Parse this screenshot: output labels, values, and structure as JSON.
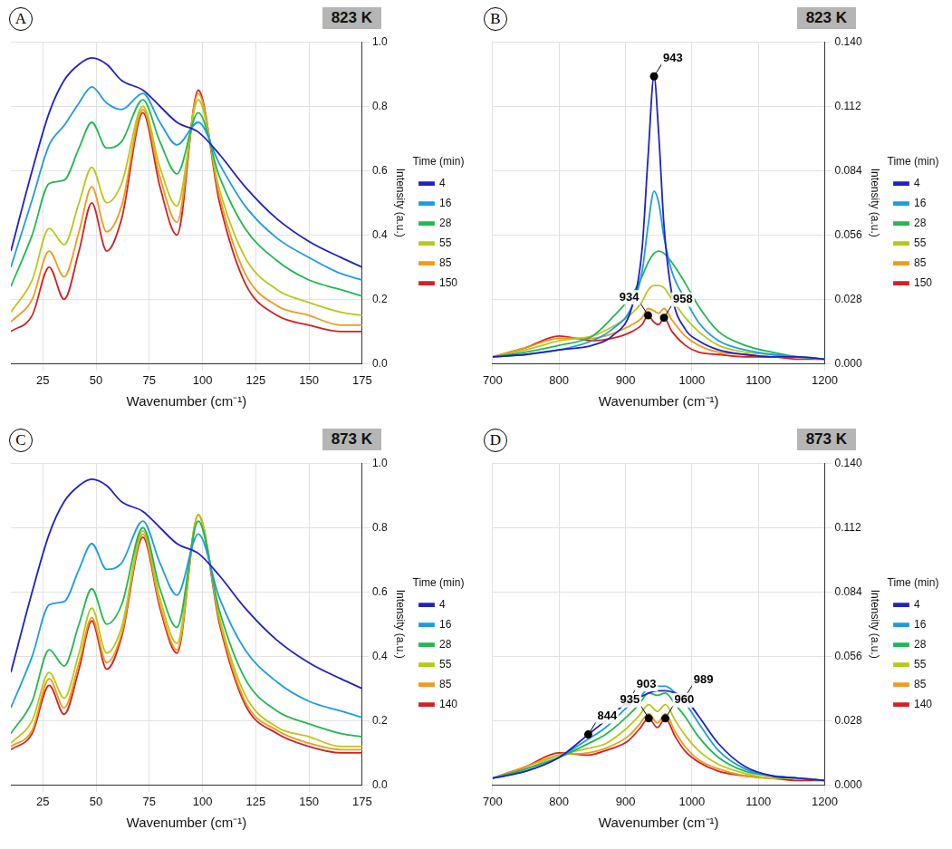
{
  "chart_data": [
    {
      "type": "line",
      "panel": "A",
      "title": "823 K",
      "x_label": "Wavenumber (cm⁻¹)",
      "y_label": "Intensity (a.u.)",
      "legend_title": "Time (min)",
      "legend": "right",
      "grid": true,
      "xlim": [
        10,
        175
      ],
      "xticks": [
        25,
        50,
        75,
        100,
        125,
        150,
        175
      ],
      "ylim": [
        0,
        1
      ],
      "yticks": [
        {
          "value": 0,
          "label": "0.0"
        },
        0.2,
        0.4,
        0.6,
        0.8,
        {
          "value": 1,
          "label": "1.0"
        }
      ],
      "x": [
        10,
        20,
        28,
        35,
        42,
        48,
        55,
        62,
        72,
        80,
        88,
        98,
        108,
        120,
        135,
        150,
        165,
        175
      ],
      "series": [
        {
          "name": "4",
          "color": "#2020c8",
          "values": [
            0.35,
            0.6,
            0.78,
            0.88,
            0.93,
            0.95,
            0.93,
            0.88,
            0.85,
            0.8,
            0.75,
            0.72,
            0.65,
            0.55,
            0.45,
            0.38,
            0.33,
            0.3
          ]
        },
        {
          "name": "16",
          "color": "#1e9be0",
          "values": [
            0.3,
            0.51,
            0.68,
            0.74,
            0.81,
            0.86,
            0.81,
            0.79,
            0.84,
            0.75,
            0.68,
            0.75,
            0.62,
            0.49,
            0.39,
            0.33,
            0.28,
            0.26
          ]
        },
        {
          "name": "28",
          "color": "#20b850",
          "values": [
            0.24,
            0.4,
            0.56,
            0.57,
            0.67,
            0.75,
            0.67,
            0.69,
            0.82,
            0.69,
            0.59,
            0.78,
            0.58,
            0.42,
            0.32,
            0.26,
            0.23,
            0.21
          ]
        },
        {
          "name": "55",
          "color": "#b8c818",
          "values": [
            0.16,
            0.26,
            0.42,
            0.37,
            0.5,
            0.61,
            0.5,
            0.56,
            0.8,
            0.61,
            0.49,
            0.82,
            0.54,
            0.33,
            0.23,
            0.19,
            0.16,
            0.15
          ]
        },
        {
          "name": "85",
          "color": "#f09a1c",
          "values": [
            0.13,
            0.2,
            0.35,
            0.27,
            0.41,
            0.55,
            0.41,
            0.49,
            0.79,
            0.58,
            0.44,
            0.84,
            0.52,
            0.28,
            0.18,
            0.15,
            0.12,
            0.12
          ]
        },
        {
          "name": "150",
          "color": "#d42020",
          "values": [
            0.1,
            0.15,
            0.3,
            0.2,
            0.35,
            0.5,
            0.35,
            0.45,
            0.78,
            0.55,
            0.4,
            0.85,
            0.5,
            0.25,
            0.15,
            0.12,
            0.1,
            0.1
          ]
        }
      ]
    },
    {
      "type": "line",
      "panel": "B",
      "title": "823 K",
      "x_label": "Wavenumber (cm⁻¹)",
      "y_label": "Intensity (a.u.)",
      "legend_title": "Time (min)",
      "legend": "right",
      "grid": true,
      "xlim": [
        700,
        1200
      ],
      "xticks": [
        700,
        800,
        900,
        1000,
        1100,
        1200
      ],
      "ylim": [
        0,
        0.14
      ],
      "yticks": [
        {
          "value": 0,
          "label": "0.000"
        },
        0.028,
        0.056,
        0.084,
        0.112,
        {
          "value": 0.14,
          "label": "0.140"
        }
      ],
      "x": [
        700,
        750,
        800,
        850,
        880,
        910,
        925,
        934,
        943,
        950,
        958,
        970,
        990,
        1010,
        1040,
        1080,
        1120,
        1160,
        1200
      ],
      "series": [
        {
          "name": "4",
          "color": "#2020c8",
          "values": [
            0.003,
            0.004,
            0.006,
            0.008,
            0.012,
            0.025,
            0.05,
            0.09,
            0.125,
            0.1,
            0.06,
            0.03,
            0.015,
            0.01,
            0.006,
            0.004,
            0.003,
            0.003,
            0.002
          ]
        },
        {
          "name": "16",
          "color": "#1e9be0",
          "values": [
            0.003,
            0.004,
            0.006,
            0.01,
            0.015,
            0.025,
            0.04,
            0.06,
            0.075,
            0.07,
            0.055,
            0.04,
            0.028,
            0.018,
            0.01,
            0.006,
            0.004,
            0.003,
            0.002
          ]
        },
        {
          "name": "28",
          "color": "#20b850",
          "values": [
            0.003,
            0.005,
            0.008,
            0.012,
            0.02,
            0.03,
            0.038,
            0.044,
            0.048,
            0.049,
            0.048,
            0.044,
            0.035,
            0.025,
            0.014,
            0.008,
            0.005,
            0.003,
            0.002
          ]
        },
        {
          "name": "55",
          "color": "#b8c818",
          "values": [
            0.003,
            0.006,
            0.01,
            0.012,
            0.016,
            0.022,
            0.027,
            0.032,
            0.034,
            0.034,
            0.033,
            0.028,
            0.02,
            0.014,
            0.008,
            0.005,
            0.004,
            0.003,
            0.002
          ]
        },
        {
          "name": "85",
          "color": "#f09a1c",
          "values": [
            0.003,
            0.007,
            0.011,
            0.011,
            0.013,
            0.017,
            0.02,
            0.024,
            0.023,
            0.022,
            0.024,
            0.019,
            0.012,
            0.008,
            0.005,
            0.004,
            0.003,
            0.003,
            0.002
          ]
        },
        {
          "name": "150",
          "color": "#d42020",
          "values": [
            0.003,
            0.007,
            0.012,
            0.01,
            0.011,
            0.014,
            0.017,
            0.021,
            0.018,
            0.017,
            0.02,
            0.014,
            0.008,
            0.005,
            0.004,
            0.003,
            0.003,
            0.002,
            0.002
          ]
        }
      ],
      "annotations": [
        {
          "x": 943,
          "series": "4"
        },
        {
          "x": 934,
          "series": "150"
        },
        {
          "x": 958,
          "series": "150"
        }
      ]
    },
    {
      "type": "line",
      "panel": "C",
      "title": "873 K",
      "x_label": "Wavenumber (cm⁻¹)",
      "y_label": "Intensity (a.u.)",
      "legend_title": "Time (min)",
      "legend": "right",
      "grid": true,
      "xlim": [
        10,
        175
      ],
      "xticks": [
        25,
        50,
        75,
        100,
        125,
        150,
        175
      ],
      "ylim": [
        0,
        1
      ],
      "yticks": [
        {
          "value": 0,
          "label": "0.0"
        },
        0.2,
        0.4,
        0.6,
        0.8,
        {
          "value": 1,
          "label": "1.0"
        }
      ],
      "x": [
        10,
        20,
        28,
        35,
        42,
        48,
        55,
        62,
        72,
        80,
        88,
        98,
        108,
        120,
        135,
        150,
        165,
        175
      ],
      "series": [
        {
          "name": "4",
          "color": "#2020c8",
          "values": [
            0.35,
            0.6,
            0.78,
            0.88,
            0.93,
            0.95,
            0.93,
            0.88,
            0.85,
            0.8,
            0.75,
            0.72,
            0.65,
            0.55,
            0.45,
            0.38,
            0.33,
            0.3
          ]
        },
        {
          "name": "16",
          "color": "#1e9be0",
          "values": [
            0.24,
            0.4,
            0.56,
            0.57,
            0.67,
            0.75,
            0.67,
            0.69,
            0.82,
            0.69,
            0.59,
            0.78,
            0.58,
            0.42,
            0.32,
            0.26,
            0.23,
            0.21
          ]
        },
        {
          "name": "28",
          "color": "#20b850",
          "values": [
            0.16,
            0.26,
            0.42,
            0.37,
            0.5,
            0.61,
            0.5,
            0.56,
            0.8,
            0.61,
            0.49,
            0.82,
            0.54,
            0.33,
            0.23,
            0.19,
            0.16,
            0.15
          ]
        },
        {
          "name": "55",
          "color": "#b8c818",
          "values": [
            0.13,
            0.2,
            0.35,
            0.27,
            0.41,
            0.55,
            0.41,
            0.49,
            0.79,
            0.58,
            0.44,
            0.84,
            0.52,
            0.28,
            0.18,
            0.15,
            0.12,
            0.12
          ]
        },
        {
          "name": "85",
          "color": "#f09a1c",
          "values": [
            0.12,
            0.17,
            0.33,
            0.24,
            0.38,
            0.52,
            0.38,
            0.47,
            0.78,
            0.56,
            0.42,
            0.84,
            0.51,
            0.26,
            0.17,
            0.13,
            0.11,
            0.11
          ]
        },
        {
          "name": "140",
          "color": "#d42020",
          "values": [
            0.11,
            0.16,
            0.31,
            0.22,
            0.36,
            0.51,
            0.36,
            0.46,
            0.77,
            0.55,
            0.41,
            0.84,
            0.5,
            0.25,
            0.16,
            0.12,
            0.1,
            0.1
          ]
        }
      ]
    },
    {
      "type": "line",
      "panel": "D",
      "title": "873 K",
      "x_label": "Wavenumber (cm⁻¹)",
      "y_label": "Intensity (a.u.)",
      "legend_title": "Time (min)",
      "legend": "right",
      "grid": true,
      "xlim": [
        700,
        1200
      ],
      "xticks": [
        700,
        800,
        900,
        1000,
        1100,
        1200
      ],
      "ylim": [
        0,
        0.14
      ],
      "yticks": [
        {
          "value": 0,
          "label": "0.000"
        },
        0.028,
        0.056,
        0.084,
        0.112,
        {
          "value": 0.14,
          "label": "0.140"
        }
      ],
      "x": [
        700,
        750,
        800,
        844,
        870,
        903,
        920,
        935,
        948,
        960,
        975,
        989,
        1010,
        1040,
        1080,
        1120,
        1160,
        1200
      ],
      "series": [
        {
          "name": "4",
          "color": "#2020c8",
          "values": [
            0.003,
            0.006,
            0.012,
            0.022,
            0.028,
            0.036,
            0.038,
            0.04,
            0.041,
            0.041,
            0.04,
            0.038,
            0.03,
            0.018,
            0.008,
            0.004,
            0.003,
            0.002
          ]
        },
        {
          "name": "16",
          "color": "#1e9be0",
          "values": [
            0.003,
            0.006,
            0.012,
            0.02,
            0.025,
            0.034,
            0.038,
            0.042,
            0.043,
            0.043,
            0.04,
            0.036,
            0.027,
            0.015,
            0.007,
            0.004,
            0.003,
            0.002
          ]
        },
        {
          "name": "28",
          "color": "#20b850",
          "values": [
            0.003,
            0.007,
            0.012,
            0.018,
            0.022,
            0.03,
            0.035,
            0.04,
            0.039,
            0.04,
            0.035,
            0.03,
            0.021,
            0.012,
            0.006,
            0.004,
            0.003,
            0.002
          ]
        },
        {
          "name": "55",
          "color": "#b8c818",
          "values": [
            0.003,
            0.007,
            0.013,
            0.016,
            0.018,
            0.025,
            0.03,
            0.035,
            0.032,
            0.035,
            0.028,
            0.022,
            0.015,
            0.009,
            0.005,
            0.003,
            0.003,
            0.002
          ]
        },
        {
          "name": "85",
          "color": "#f09a1c",
          "values": [
            0.003,
            0.008,
            0.013,
            0.014,
            0.016,
            0.021,
            0.026,
            0.031,
            0.027,
            0.031,
            0.023,
            0.017,
            0.011,
            0.007,
            0.004,
            0.003,
            0.003,
            0.002
          ]
        },
        {
          "name": "140",
          "color": "#d42020",
          "values": [
            0.003,
            0.008,
            0.014,
            0.013,
            0.015,
            0.019,
            0.024,
            0.029,
            0.025,
            0.029,
            0.021,
            0.015,
            0.01,
            0.006,
            0.004,
            0.003,
            0.002,
            0.002
          ]
        }
      ],
      "annotations": [
        {
          "x": 844,
          "series": "4"
        },
        {
          "x": 903,
          "series": "4"
        },
        {
          "x": 989,
          "series": "4"
        },
        {
          "x": 935,
          "series": "140"
        },
        {
          "x": 960,
          "series": "140"
        }
      ]
    }
  ]
}
